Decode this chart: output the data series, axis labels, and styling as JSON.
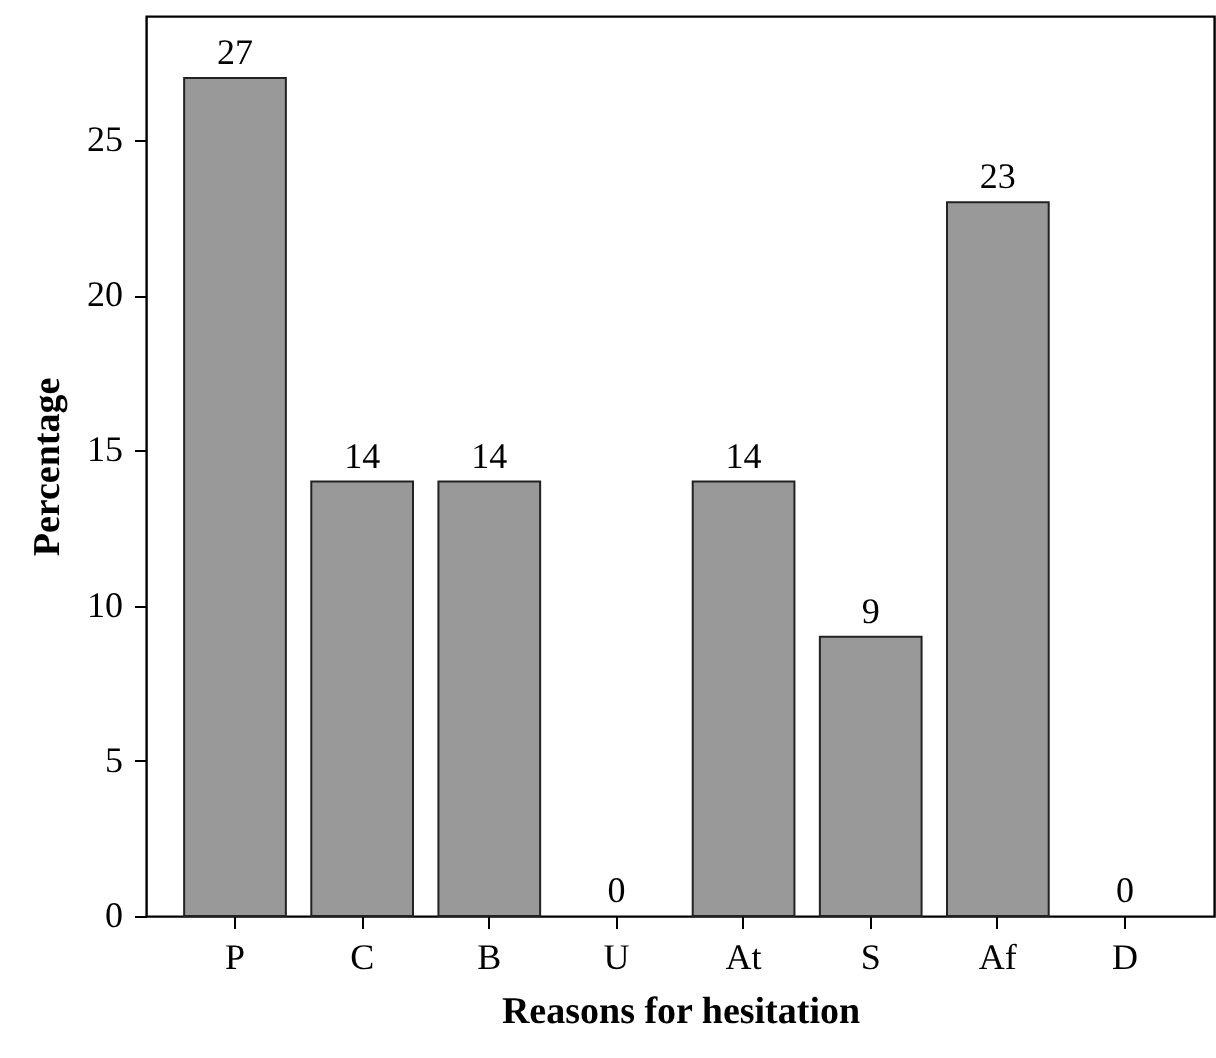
{
  "chart_data": {
    "type": "bar",
    "xlabel": "Reasons for hesitation",
    "ylabel": "Percentage",
    "categories": [
      "P",
      "C",
      "B",
      "U",
      "At",
      "S",
      "Af",
      "D"
    ],
    "values": [
      27,
      14,
      14,
      0,
      14,
      9,
      23,
      0
    ],
    "color": "#999999",
    "ylim": [
      0,
      29
    ],
    "yticks": [
      0,
      5,
      10,
      15,
      20,
      25
    ],
    "data_labels": true,
    "grid": false
  }
}
